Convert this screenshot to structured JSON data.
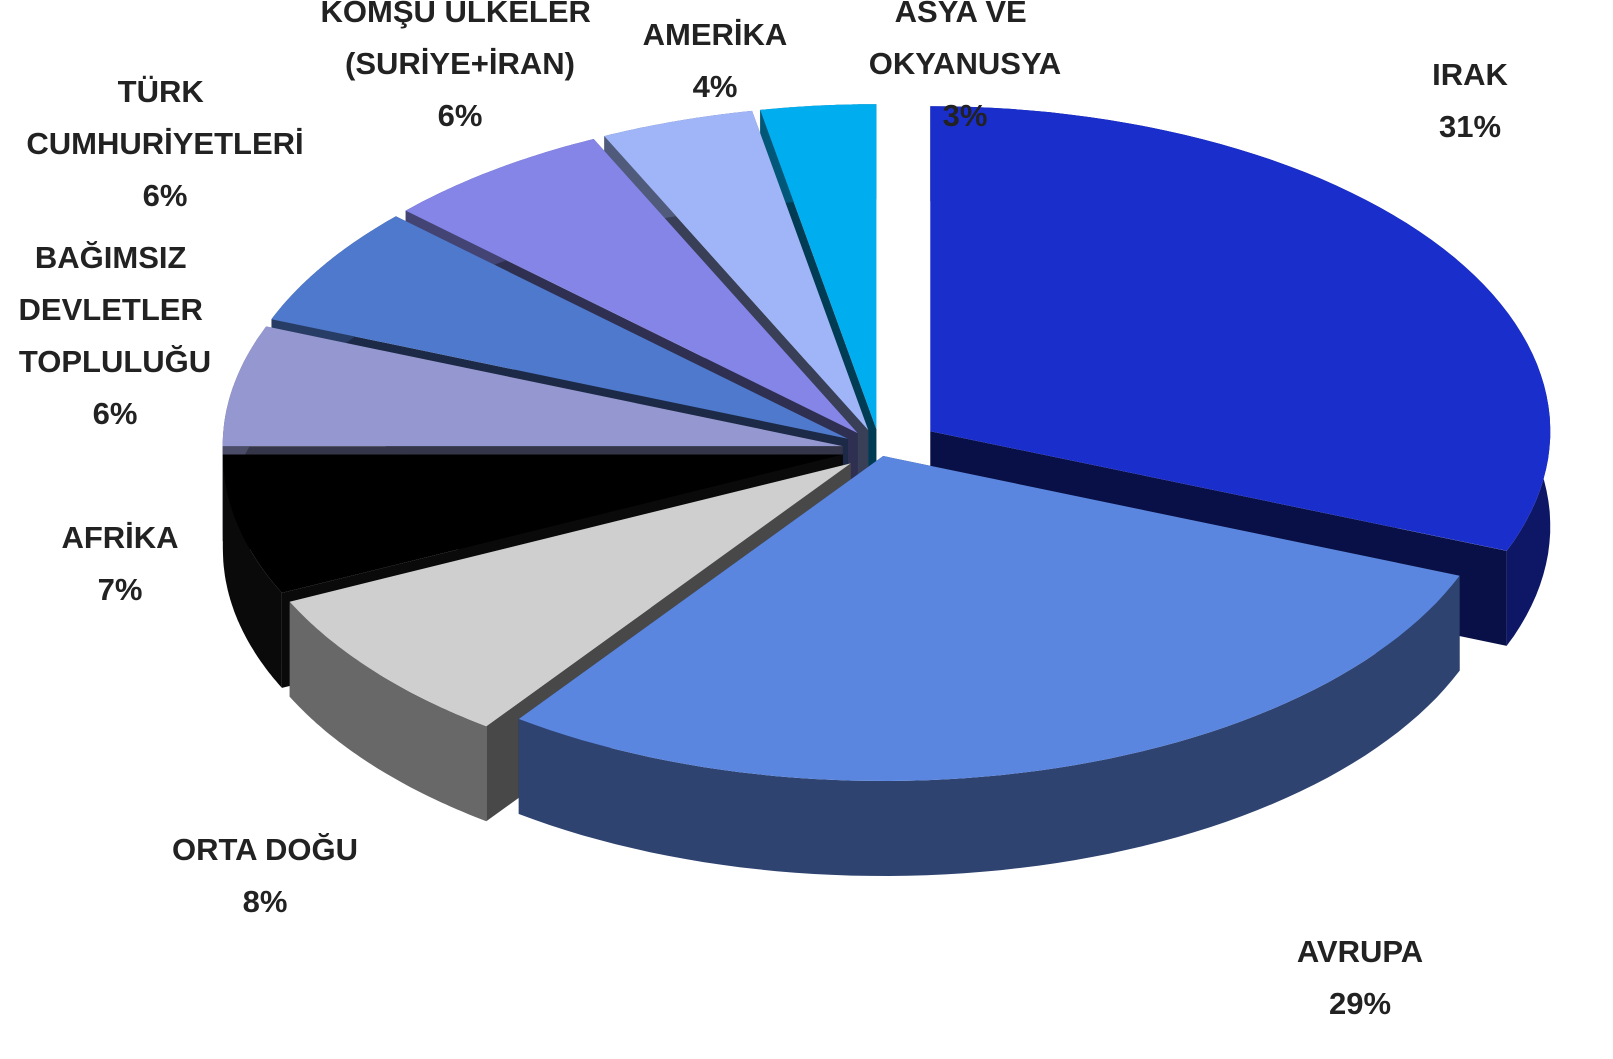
{
  "chart_data": {
    "type": "pie",
    "categories": [
      "IRAK",
      "AVRUPA",
      "ORTA DOĞU",
      "AFRİKA",
      "BAĞIMSIZ DEVLETLER TOPLULUĞU",
      "TÜRK CUMHURİYETLERİ",
      "KOMŞU ÜLKELER (SURİYE+İRAN)",
      "AMERİKA",
      "ASYA VE OKYANUSYA"
    ],
    "values": [
      31,
      29,
      8,
      7,
      6,
      6,
      6,
      4,
      3
    ],
    "value_labels": [
      "31%",
      "29%",
      "8%",
      "7%",
      "6%",
      "6%",
      "6%",
      "4%",
      "3%"
    ],
    "colors": [
      "#1a2ecc",
      "#5b86e0",
      "#cfcfcf",
      "#000000",
      "#9597d0",
      "#4f79cc",
      "#8585e8",
      "#9fb5f8",
      "#00aeef"
    ]
  }
}
